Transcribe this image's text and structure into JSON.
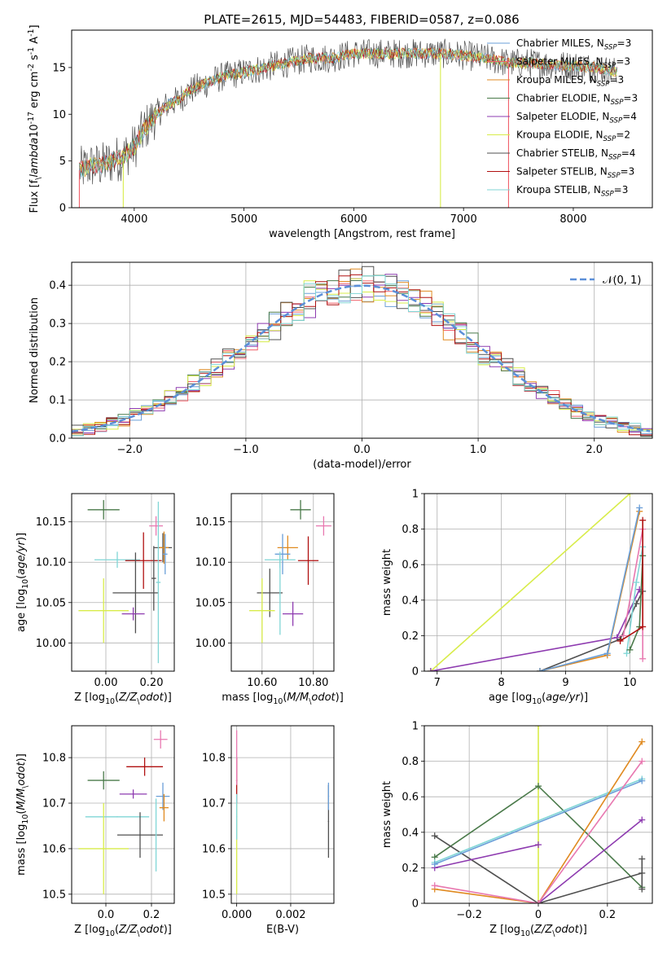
{
  "colors": {
    "chabrier_miles": "#6a9fd8",
    "salpeter_miles": "#f0606a",
    "kroupa_miles": "#e08a20",
    "chabrier_elodie": "#4a7a4a",
    "salpeter_elodie": "#8e3bb0",
    "kroupa_elodie": "#d8ec4a",
    "chabrier_stelib": "#505050",
    "salpeter_stelib": "#b01010",
    "kroupa_stelib": "#80d6d6",
    "pink": "#e878b0",
    "gauss": "#5b8fd8",
    "grid": "#b0b0b0"
  },
  "chart_data": [
    {
      "id": "spectrum",
      "type": "line",
      "title": "PLATE=2615, MJD=54483, FIBERID=0587, z=0.086",
      "xlabel": "wavelength [Angstrom, rest frame]",
      "ylabel": "Flux [f$_\\lambda$10$^{-17}$ erg cm$^{-2}$ s$^{-1}$ A$^{-1}$]",
      "xlim": [
        3430,
        8720
      ],
      "ylim": [
        0,
        19
      ],
      "xticks": [
        4000,
        5000,
        6000,
        7000,
        8000
      ],
      "yticks": [
        0,
        5,
        10,
        15
      ],
      "grid": false,
      "legend_position": "right",
      "legend": [
        {
          "label": "Chabrier MILES, N$_{SSP}$=3",
          "color_key": "chabrier_miles"
        },
        {
          "label": "Salpeter MILES, N$_{SSP}$=3",
          "color_key": "salpeter_miles"
        },
        {
          "label": "Kroupa MILES, N$_{SSP}$=3",
          "color_key": "kroupa_miles"
        },
        {
          "label": "Chabrier ELODIE, N$_{SSP}$=3",
          "color_key": "chabrier_elodie"
        },
        {
          "label": "Salpeter ELODIE, N$_{SSP}$=4",
          "color_key": "salpeter_elodie"
        },
        {
          "label": "Kroupa ELODIE, N$_{SSP}$=2",
          "color_key": "kroupa_elodie"
        },
        {
          "label": "Chabrier STELIB, N$_{SSP}$=4",
          "color_key": "chabrier_stelib"
        },
        {
          "label": "Salpeter STELIB, N$_{SSP}$=3",
          "color_key": "salpeter_stelib"
        },
        {
          "label": "Kroupa STELIB, N$_{SSP}$=3",
          "color_key": "kroupa_stelib"
        }
      ],
      "continuum": {
        "x": [
          3500,
          3600,
          3700,
          3800,
          3900,
          4000,
          4100,
          4200,
          4300,
          4400,
          4500,
          4600,
          4800,
          5000,
          5200,
          5400,
          5600,
          5800,
          6000,
          6200,
          6400,
          6600,
          6800,
          7000,
          7200,
          7400,
          7600,
          7800,
          8000,
          8200,
          8400
        ],
        "y": [
          4.0,
          4.5,
          4.5,
          5.0,
          5.5,
          6.5,
          8.5,
          10.0,
          11.0,
          11.5,
          12.5,
          13.0,
          14.0,
          14.5,
          15.0,
          15.5,
          16.0,
          16.0,
          16.5,
          16.5,
          16.5,
          16.5,
          16.5,
          16.3,
          16.0,
          15.5,
          15.5,
          15.3,
          15.2,
          15.0,
          14.5
        ]
      },
      "vertical_drops": [
        {
          "x": 3500,
          "color_key": "salpeter_miles"
        },
        {
          "x": 3900,
          "color_key": "kroupa_elodie"
        },
        {
          "x": 6790,
          "color_key": "kroupa_elodie"
        },
        {
          "x": 7410,
          "color_key": "salpeter_miles"
        }
      ]
    },
    {
      "id": "residuals",
      "type": "histogram",
      "xlabel": "(data-model)/error",
      "ylabel": "Normed distribution",
      "xlim": [
        -2.5,
        2.5
      ],
      "ylim": [
        0,
        0.46
      ],
      "xticks": [
        -2,
        -1,
        0,
        1,
        2
      ],
      "yticks": [
        0.0,
        0.1,
        0.2,
        0.3,
        0.4
      ],
      "grid": true,
      "legend_position": "top-right",
      "legend": [
        {
          "label": "$\\mathcal{N}(0, 1)$",
          "style": "dashed",
          "color_key": "gauss"
        }
      ],
      "bin_width": 0.1,
      "series_color_keys": [
        "chabrier_miles",
        "salpeter_miles",
        "kroupa_miles",
        "chabrier_elodie",
        "salpeter_elodie",
        "kroupa_elodie",
        "chabrier_stelib",
        "salpeter_stelib",
        "kroupa_stelib"
      ]
    },
    {
      "id": "age-vs-z",
      "type": "scatter",
      "xlabel": "Z [log$_{10}$($Z/Z_\\odot$)]",
      "ylabel": "age  [log$_{10}$($age/yr$)]",
      "xlim": [
        -0.15,
        0.3
      ],
      "ylim": [
        9.965,
        10.185
      ],
      "xticks": [
        0.0,
        0.2
      ],
      "yticks": [
        10.0,
        10.05,
        10.1,
        10.15
      ],
      "grid": true,
      "points": [
        {
          "x": -0.01,
          "y": 10.165,
          "xerr": 0.07,
          "yerr": 0.012,
          "color_key": "chabrier_elodie"
        },
        {
          "x": 0.22,
          "y": 10.145,
          "xerr": 0.03,
          "yerr": 0.012,
          "color_key": "pink"
        },
        {
          "x": 0.25,
          "y": 10.118,
          "xerr": 0.04,
          "yerr": 0.018,
          "color_key": "chabrier_stelib"
        },
        {
          "x": 0.255,
          "y": 10.118,
          "xerr": 0.02,
          "yerr": 0.02,
          "color_key": "kroupa_miles"
        },
        {
          "x": 0.05,
          "y": 10.103,
          "xerr": 0.1,
          "yerr": 0.01,
          "color_key": "kroupa_stelib"
        },
        {
          "x": 0.165,
          "y": 10.102,
          "xerr": 0.08,
          "yerr": 0.035,
          "color_key": "salpeter_stelib"
        },
        {
          "x": 0.26,
          "y": 10.11,
          "xerr": 0.01,
          "yerr": 0.025,
          "color_key": "chabrier_miles"
        },
        {
          "x": 0.13,
          "y": 10.062,
          "xerr": 0.1,
          "yerr": 0.05,
          "color_key": "chabrier_stelib"
        },
        {
          "x": 0.23,
          "y": 10.075,
          "xerr": 0.01,
          "yerr": 0.1,
          "color_key": "kroupa_stelib"
        },
        {
          "x": 0.21,
          "y": 10.08,
          "xerr": 0.01,
          "yerr": 0.04,
          "color_key": "chabrier_stelib"
        },
        {
          "x": 0.12,
          "y": 10.036,
          "xerr": 0.05,
          "yerr": 0.008,
          "color_key": "salpeter_elodie"
        },
        {
          "x": -0.01,
          "y": 10.04,
          "xerr": 0.11,
          "yerr": 0.04,
          "color_key": "kroupa_elodie"
        }
      ]
    },
    {
      "id": "age-vs-mass",
      "type": "scatter",
      "xlabel": "mass [log$_{10}$($M/M_\\odot$)]",
      "ylabel": "",
      "xlim": [
        10.48,
        10.88
      ],
      "ylim": [
        9.965,
        10.185
      ],
      "xticks": [
        10.6,
        10.8
      ],
      "yticks": [
        10.0,
        10.05,
        10.1,
        10.15
      ],
      "grid": true,
      "points": [
        {
          "x": 10.75,
          "y": 10.165,
          "xerr": 0.04,
          "yerr": 0.012,
          "color_key": "chabrier_elodie"
        },
        {
          "x": 10.84,
          "y": 10.145,
          "xerr": 0.03,
          "yerr": 0.012,
          "color_key": "pink"
        },
        {
          "x": 10.7,
          "y": 10.118,
          "xerr": 0.04,
          "yerr": 0.015,
          "color_key": "kroupa_miles"
        },
        {
          "x": 10.68,
          "y": 10.11,
          "xerr": 0.03,
          "yerr": 0.025,
          "color_key": "chabrier_miles"
        },
        {
          "x": 10.67,
          "y": 10.103,
          "xerr": 0.06,
          "yerr": 0.01,
          "color_key": "kroupa_stelib"
        },
        {
          "x": 10.78,
          "y": 10.102,
          "xerr": 0.04,
          "yerr": 0.03,
          "color_key": "salpeter_stelib"
        },
        {
          "x": 10.63,
          "y": 10.062,
          "xerr": 0.05,
          "yerr": 0.03,
          "color_key": "chabrier_stelib"
        },
        {
          "x": 10.72,
          "y": 10.036,
          "xerr": 0.04,
          "yerr": 0.015,
          "color_key": "salpeter_elodie"
        },
        {
          "x": 10.6,
          "y": 10.04,
          "xerr": 0.05,
          "yerr": 0.04,
          "color_key": "kroupa_elodie"
        },
        {
          "x": 10.67,
          "y": 10.06,
          "xerr": 0.0,
          "yerr": 0.05,
          "color_key": "kroupa_stelib"
        }
      ]
    },
    {
      "id": "weight-vs-age",
      "type": "line",
      "xlabel": "age  [log$_{10}$($age/yr$)]",
      "ylabel": "mass weight",
      "xlim": [
        6.8,
        10.35
      ],
      "ylim": [
        0,
        1
      ],
      "xticks": [
        7,
        8,
        9,
        10
      ],
      "yticks": [
        0.0,
        0.2,
        0.4,
        0.6,
        0.8,
        1.0
      ],
      "grid": true,
      "series": [
        {
          "color_key": "kroupa_elodie",
          "x": [
            6.9,
            10.0
          ],
          "y": [
            0.0,
            1.0
          ]
        },
        {
          "color_key": "salpeter_elodie",
          "x": [
            6.9,
            9.8,
            10.15
          ],
          "y": [
            0.0,
            0.19,
            0.46
          ]
        },
        {
          "color_key": "chabrier_stelib",
          "x": [
            8.6,
            9.85,
            10.1,
            10.2
          ],
          "y": [
            0.0,
            0.18,
            0.38,
            0.45
          ]
        },
        {
          "color_key": "kroupa_miles",
          "x": [
            8.6,
            9.65,
            10.15
          ],
          "y": [
            0.0,
            0.09,
            0.9
          ]
        },
        {
          "color_key": "chabrier_miles",
          "x": [
            8.6,
            9.65,
            10.15
          ],
          "y": [
            0.0,
            0.1,
            0.92
          ]
        },
        {
          "color_key": "pink",
          "x": [
            9.9,
            10.2,
            10.2
          ],
          "y": [
            0.2,
            0.8,
            0.07
          ]
        },
        {
          "color_key": "kroupa_stelib",
          "x": [
            9.95,
            10.1,
            10.2
          ],
          "y": [
            0.1,
            0.5,
            0.7
          ]
        },
        {
          "color_key": "chabrier_elodie",
          "x": [
            10.0,
            10.15,
            10.2
          ],
          "y": [
            0.12,
            0.25,
            0.65
          ]
        },
        {
          "color_key": "salpeter_stelib",
          "x": [
            9.85,
            10.2,
            10.2
          ],
          "y": [
            0.17,
            0.25,
            0.85
          ]
        }
      ]
    },
    {
      "id": "mass-vs-z",
      "type": "scatter",
      "xlabel": "Z [log$_{10}$($Z/Z_\\odot$)]",
      "ylabel": "mass [log$_{10}$($M/M_\\odot$)]",
      "xlim": [
        -0.15,
        0.3
      ],
      "ylim": [
        10.48,
        10.87
      ],
      "xticks": [
        0.0,
        0.2
      ],
      "yticks": [
        10.5,
        10.6,
        10.7,
        10.8
      ],
      "grid": true,
      "points": [
        {
          "x": -0.01,
          "y": 10.75,
          "xerr": 0.07,
          "yerr": 0.02,
          "color_key": "chabrier_elodie"
        },
        {
          "x": 0.24,
          "y": 10.84,
          "xerr": 0.03,
          "yerr": 0.02,
          "color_key": "pink"
        },
        {
          "x": 0.17,
          "y": 10.78,
          "xerr": 0.08,
          "yerr": 0.02,
          "color_key": "salpeter_stelib"
        },
        {
          "x": 0.12,
          "y": 10.72,
          "xerr": 0.06,
          "yerr": 0.01,
          "color_key": "salpeter_elodie"
        },
        {
          "x": 0.25,
          "y": 10.715,
          "xerr": 0.03,
          "yerr": 0.03,
          "color_key": "chabrier_miles"
        },
        {
          "x": 0.255,
          "y": 10.69,
          "xerr": 0.02,
          "yerr": 0.03,
          "color_key": "kroupa_miles"
        },
        {
          "x": 0.05,
          "y": 10.67,
          "xerr": 0.14,
          "yerr": 0.0,
          "color_key": "kroupa_stelib"
        },
        {
          "x": 0.15,
          "y": 10.63,
          "xerr": 0.1,
          "yerr": 0.05,
          "color_key": "chabrier_stelib"
        },
        {
          "x": 0.22,
          "y": 10.63,
          "xerr": 0.0,
          "yerr": 0.08,
          "color_key": "kroupa_stelib"
        },
        {
          "x": -0.01,
          "y": 10.6,
          "xerr": 0.11,
          "yerr": 0.1,
          "color_key": "kroupa_elodie"
        }
      ]
    },
    {
      "id": "mass-vs-ebv",
      "type": "scatter",
      "xlabel": "E(B-V)",
      "ylabel": "",
      "xlim": [
        -0.0002,
        0.0036
      ],
      "ylim": [
        10.48,
        10.87
      ],
      "xticks": [
        0.0,
        0.002
      ],
      "xtick_labels": [
        "0.000",
        "0.002"
      ],
      "yticks": [
        10.5,
        10.6,
        10.7,
        10.8
      ],
      "grid": true,
      "points": [
        {
          "x": 0.0,
          "y": 10.75,
          "xerr": 0,
          "yerr": 0.05,
          "color_key": "salpeter_stelib"
        },
        {
          "x": 0.0,
          "y": 10.8,
          "xerr": 0,
          "yerr": 0.06,
          "color_key": "pink"
        },
        {
          "x": 0.0,
          "y": 10.6,
          "xerr": 0,
          "yerr": 0.1,
          "color_key": "kroupa_elodie"
        },
        {
          "x": 0.0,
          "y": 10.67,
          "xerr": 0,
          "yerr": 0.05,
          "color_key": "kroupa_stelib"
        },
        {
          "x": 0.0034,
          "y": 10.66,
          "xerr": 0,
          "yerr": 0.08,
          "color_key": "chabrier_stelib"
        },
        {
          "x": 0.0034,
          "y": 10.715,
          "xerr": 0,
          "yerr": 0.03,
          "color_key": "chabrier_miles"
        }
      ]
    },
    {
      "id": "weight-vs-z",
      "type": "line",
      "xlabel": "Z [log$_{10}$($Z/Z_\\odot$)]",
      "ylabel": "mass weight",
      "xlim": [
        -0.33,
        0.33
      ],
      "ylim": [
        0,
        1
      ],
      "xticks": [
        -0.2,
        0.0,
        0.2
      ],
      "yticks": [
        0.0,
        0.2,
        0.4,
        0.6,
        0.8,
        1.0
      ],
      "grid": true,
      "series": [
        {
          "color_key": "kroupa_elodie",
          "x": [
            0.0,
            0.0
          ],
          "y": [
            0.0,
            1.0
          ]
        },
        {
          "color_key": "chabrier_elodie",
          "x": [
            -0.3,
            0.0,
            0.3
          ],
          "y": [
            0.26,
            0.66,
            0.09
          ]
        },
        {
          "color_key": "chabrier_stelib",
          "x": [
            -0.3,
            0.0,
            0.3
          ],
          "y": [
            0.38,
            0.0,
            0.17
          ]
        },
        {
          "color_key": "salpeter_elodie",
          "x": [
            -0.3,
            0.0
          ],
          "y": [
            0.2,
            0.33
          ]
        },
        {
          "color_key": "salpeter_elodie",
          "x": [
            0.0,
            0.3
          ],
          "y": [
            0.0,
            0.47
          ]
        },
        {
          "color_key": "kroupa_stelib",
          "x": [
            -0.3,
            0.3
          ],
          "y": [
            0.23,
            0.7
          ]
        },
        {
          "color_key": "chabrier_miles",
          "x": [
            -0.3,
            0.3
          ],
          "y": [
            0.22,
            0.69
          ]
        },
        {
          "color_key": "kroupa_miles",
          "x": [
            -0.3,
            0.0,
            0.3
          ],
          "y": [
            0.08,
            0.0,
            0.91
          ]
        },
        {
          "color_key": "pink",
          "x": [
            -0.3,
            0.0,
            0.3
          ],
          "y": [
            0.1,
            0.0,
            0.8
          ]
        },
        {
          "color_key": "chabrier_stelib",
          "x": [
            0.3,
            0.3
          ],
          "y": [
            0.08,
            0.25
          ]
        }
      ]
    }
  ]
}
